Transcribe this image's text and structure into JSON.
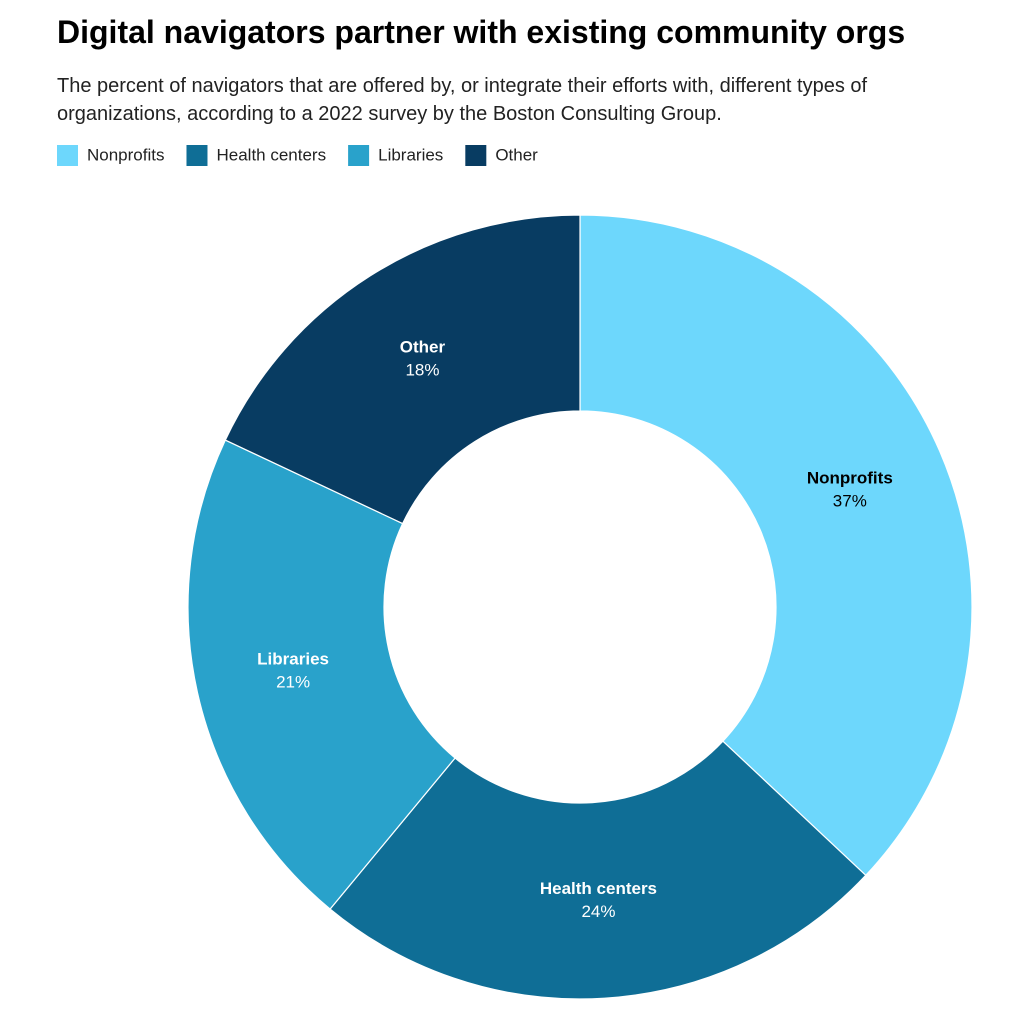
{
  "chart_data": {
    "type": "pie",
    "title": "Digital navigators partner with existing community orgs",
    "subtitle": "The percent of navigators that are offered by, or integrate their efforts with, different types of organizations, according to a 2022 survey by the Boston Consulting Group.",
    "categories": [
      "Nonprofits",
      "Health centers",
      "Libraries",
      "Other"
    ],
    "values": [
      37,
      24,
      21,
      18
    ],
    "value_labels": [
      "37%",
      "24%",
      "21%",
      "18%"
    ],
    "colors": [
      "#6dd7fc",
      "#0f6e96",
      "#29a2cb",
      "#083c62"
    ],
    "legend": "top-left"
  }
}
